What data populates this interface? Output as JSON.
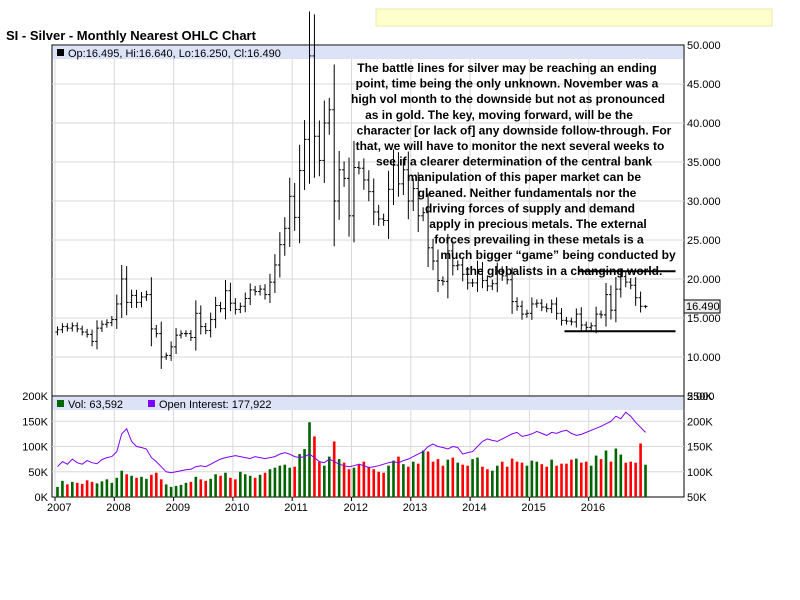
{
  "header": {
    "title": "SI - Silver - Monthly Nearest OHLC Chart",
    "info": "Op:16.495, Hi:16.640, Lo:16.250, Cl:16.490",
    "last_price": "16.490",
    "colors": {
      "banner": "#ffffcc",
      "info_band": "#dde3f7",
      "hl_box": "#eeeeee"
    }
  },
  "volume_header": {
    "volume": "Vol: 63,592",
    "oi": "Open Interest: 177,922"
  },
  "annotation": [
    "The battle lines for silver may be reaching an ending",
    "point, time being the only unknown.  November was a",
    "high vol month to the downside but not as pronounced",
    "as in gold.  The key, moving forward, will be the",
    "character [or lack of] any downside follow-through.  For",
    "that, we will have to monitor the next several weeks to",
    "see if a clearer determination of the central bank",
    "manipulation of this paper market can be",
    "gleaned.  Neither fundamentals nor the",
    "driving forces of supply and demand",
    "apply in precious metals.  The external",
    "forces prevailing in these metals is a",
    "much bigger “game” being conducted by",
    "the globalists in a changing world."
  ],
  "chart_data": [
    {
      "type": "ohlc",
      "title": "SI - Silver - Monthly Nearest OHLC Chart",
      "x_start": "2007-01",
      "x_end": "2016-12",
      "x_ticks": [
        "2007",
        "2008",
        "2009",
        "2010",
        "2011",
        "2012",
        "2013",
        "2014",
        "2015",
        "2016"
      ],
      "ylim": [
        5,
        50
      ],
      "y_ticks": [
        "5.000",
        "10.000",
        "15.000",
        "20.000",
        "25.000",
        "30.000",
        "35.000",
        "40.000",
        "45.000",
        "50.000"
      ],
      "last": {
        "open": 16.495,
        "high": 16.64,
        "low": 16.25,
        "close": 16.49
      },
      "grid": true,
      "close_series": [
        13.5,
        13.9,
        13.7,
        14.0,
        13.6,
        13.2,
        12.9,
        12.0,
        13.7,
        14.2,
        14.4,
        14.8,
        16.8,
        20.0,
        17.0,
        17.9,
        17.0,
        17.7,
        18.0,
        13.6,
        13.0,
        10.0,
        10.2,
        11.3,
        12.8,
        13.0,
        13.0,
        12.5,
        15.6,
        13.9,
        13.4,
        14.8,
        16.6,
        16.2,
        18.5,
        16.9,
        16.1,
        16.5,
        17.5,
        18.6,
        18.4,
        18.7,
        18.0,
        19.6,
        21.8,
        24.4,
        26.5,
        30.6,
        27.9,
        33.9,
        37.9,
        48.6,
        38.3,
        35.2,
        40.0,
        41.7,
        30.0,
        34.0,
        32.9,
        28.1,
        34.3,
        34.2,
        32.7,
        31.2,
        28.6,
        27.7,
        27.5,
        31.5,
        34.6,
        32.2,
        34.0,
        30.0,
        31.6,
        28.1,
        28.5,
        24.0,
        22.3,
        19.8,
        19.7,
        23.6,
        21.7,
        21.8,
        20.6,
        19.5,
        19.5,
        21.2,
        19.8,
        19.1,
        19.4,
        21.0,
        20.4,
        19.9,
        17.1,
        16.5,
        15.5,
        15.6,
        16.8,
        16.9,
        16.4,
        16.2,
        16.8,
        15.6,
        14.7,
        14.6,
        14.5,
        15.5,
        14.1,
        13.8,
        14.0,
        15.5,
        15.4,
        18.0,
        16.0,
        18.7,
        20.3,
        19.6,
        19.2,
        17.6,
        16.5,
        16.5
      ],
      "annotation_lines": [
        {
          "label": "resistance",
          "y": 21.0,
          "from": "2015-11",
          "to": "2016-12"
        },
        {
          "label": "support",
          "y": 13.3,
          "from": "2015-08",
          "to": "2016-12"
        }
      ]
    },
    {
      "type": "bar+line",
      "title": "Volume / Open Interest",
      "volume_ylim": [
        0,
        200000
      ],
      "volume_ticks": [
        "0K",
        "50K",
        "100K",
        "150K",
        "200K"
      ],
      "oi_ylim": [
        50000,
        250000
      ],
      "oi_ticks": [
        "50K",
        "100K",
        "150K",
        "200K",
        "250K"
      ],
      "up_color": "#006400",
      "down_color": "#ff0000",
      "oi_color": "#8000ff",
      "volume_series": [
        20000,
        32000,
        25000,
        30000,
        28000,
        26000,
        33000,
        30000,
        27000,
        31000,
        35000,
        28000,
        38000,
        52000,
        45000,
        42000,
        38000,
        40000,
        36000,
        44000,
        48000,
        35000,
        25000,
        20000,
        22000,
        24000,
        28000,
        30000,
        40000,
        35000,
        32000,
        36000,
        45000,
        42000,
        48000,
        38000,
        35000,
        50000,
        45000,
        42000,
        38000,
        44000,
        48000,
        55000,
        58000,
        62000,
        64000,
        58000,
        60000,
        85000,
        95000,
        148000,
        120000,
        70000,
        62000,
        80000,
        110000,
        75000,
        68000,
        55000,
        58000,
        65000,
        70000,
        60000,
        55000,
        50000,
        48000,
        62000,
        72000,
        80000,
        65000,
        60000,
        70000,
        66000,
        92000,
        90000,
        70000,
        75000,
        62000,
        74000,
        78000,
        68000,
        64000,
        62000,
        75000,
        78000,
        60000,
        55000,
        52000,
        62000,
        70000,
        60000,
        76000,
        70000,
        68000,
        62000,
        72000,
        70000,
        65000,
        60000,
        74000,
        62000,
        66000,
        66000,
        74000,
        76000,
        68000,
        70000,
        62000,
        82000,
        75000,
        92000,
        70000,
        96000,
        84000,
        68000,
        70000,
        68000,
        106000,
        64000
      ],
      "oi_series": [
        110000,
        120000,
        115000,
        125000,
        118000,
        115000,
        122000,
        118000,
        116000,
        124000,
        128000,
        130000,
        140000,
        175000,
        185000,
        160000,
        150000,
        148000,
        145000,
        128000,
        120000,
        110000,
        100000,
        98000,
        100000,
        102000,
        104000,
        105000,
        110000,
        112000,
        110000,
        115000,
        120000,
        125000,
        128000,
        130000,
        132000,
        130000,
        128000,
        126000,
        130000,
        128000,
        126000,
        128000,
        130000,
        135000,
        138000,
        135000,
        130000,
        128000,
        130000,
        135000,
        128000,
        120000,
        118000,
        125000,
        120000,
        115000,
        112000,
        110000,
        112000,
        115000,
        112000,
        108000,
        110000,
        112000,
        115000,
        118000,
        120000,
        118000,
        122000,
        125000,
        130000,
        135000,
        140000,
        150000,
        155000,
        150000,
        148000,
        145000,
        150000,
        148000,
        135000,
        138000,
        140000,
        150000,
        160000,
        165000,
        162000,
        160000,
        165000,
        170000,
        175000,
        178000,
        170000,
        172000,
        175000,
        180000,
        176000,
        172000,
        178000,
        176000,
        180000,
        182000,
        176000,
        172000,
        174000,
        178000,
        182000,
        186000,
        190000,
        195000,
        200000,
        210000,
        205000,
        218000,
        210000,
        198000,
        188000,
        178000
      ]
    }
  ]
}
